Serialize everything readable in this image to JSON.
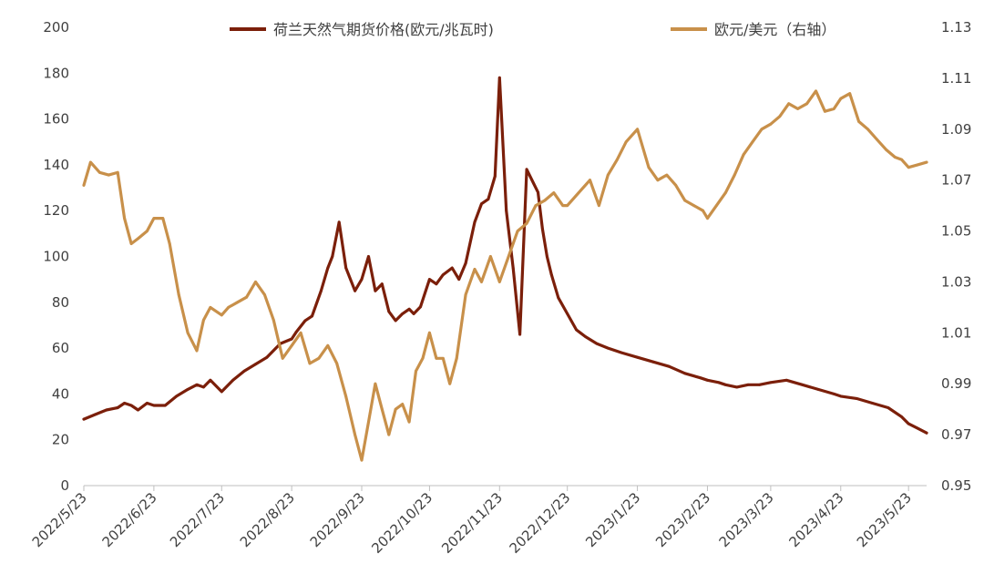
{
  "chart_data": {
    "type": "line",
    "legend_position": "top",
    "grid": false,
    "x_ticks": [
      "2022/5/23",
      "2022/6/23",
      "2022/7/23",
      "2022/8/23",
      "2022/9/23",
      "2022/10/23",
      "2022/11/23",
      "2022/12/23",
      "2023/1/23",
      "2023/2/23",
      "2023/3/23",
      "2023/4/23",
      "2023/5/23"
    ],
    "left_axis": {
      "min": 0,
      "max": 200,
      "ticks": [
        "0",
        "20",
        "40",
        "60",
        "80",
        "100",
        "120",
        "140",
        "160",
        "180",
        "200"
      ]
    },
    "right_axis": {
      "min": 0.95,
      "max": 1.13,
      "ticks": [
        "0.95",
        "0.97",
        "0.99",
        "1.01",
        "1.03",
        "1.05",
        "1.07",
        "1.09",
        "1.11",
        "1.13"
      ]
    },
    "series": [
      {
        "name": "荷兰天然气期货价格(欧元/兆瓦时)",
        "axis": "left",
        "color": "#7B1F0A",
        "x": [
          "2022-05-23",
          "2022-05-28",
          "2022-06-02",
          "2022-06-07",
          "2022-06-10",
          "2022-06-13",
          "2022-06-16",
          "2022-06-20",
          "2022-06-23",
          "2022-06-28",
          "2022-07-03",
          "2022-07-08",
          "2022-07-12",
          "2022-07-15",
          "2022-07-18",
          "2022-07-23",
          "2022-07-28",
          "2022-08-02",
          "2022-08-07",
          "2022-08-12",
          "2022-08-16",
          "2022-08-18",
          "2022-08-23",
          "2022-08-25",
          "2022-08-29",
          "2022-09-01",
          "2022-09-05",
          "2022-09-08",
          "2022-09-10",
          "2022-09-13",
          "2022-09-16",
          "2022-09-20",
          "2022-09-23",
          "2022-09-26",
          "2022-09-29",
          "2022-10-02",
          "2022-10-05",
          "2022-10-08",
          "2022-10-11",
          "2022-10-14",
          "2022-10-16",
          "2022-10-19",
          "2022-10-23",
          "2022-10-26",
          "2022-10-29",
          "2022-11-02",
          "2022-11-05",
          "2022-11-08",
          "2022-11-12",
          "2022-11-15",
          "2022-11-18",
          "2022-11-21",
          "2022-11-23",
          "2022-11-26",
          "2022-11-29",
          "2022-12-02",
          "2022-12-05",
          "2022-12-08",
          "2022-12-10",
          "2022-12-12",
          "2022-12-14",
          "2022-12-16",
          "2022-12-19",
          "2022-12-23",
          "2022-12-27",
          "2022-12-31",
          "2023-01-05",
          "2023-01-10",
          "2023-01-16",
          "2023-01-23",
          "2023-01-30",
          "2023-02-06",
          "2023-02-13",
          "2023-02-20",
          "2023-02-23",
          "2023-02-28",
          "2023-03-03",
          "2023-03-08",
          "2023-03-13",
          "2023-03-18",
          "2023-03-23",
          "2023-03-30",
          "2023-04-06",
          "2023-04-13",
          "2023-04-20",
          "2023-04-23",
          "2023-04-30",
          "2023-05-07",
          "2023-05-14",
          "2023-05-20",
          "2023-05-23",
          "2023-05-27",
          "2023-05-31"
        ],
        "values": [
          29,
          31,
          33,
          34,
          36,
          35,
          33,
          36,
          35,
          35,
          39,
          42,
          44,
          43,
          46,
          41,
          46,
          50,
          53,
          56,
          60,
          62,
          64,
          67,
          72,
          74,
          85,
          95,
          100,
          115,
          95,
          85,
          90,
          100,
          85,
          88,
          76,
          72,
          75,
          77,
          75,
          78,
          90,
          88,
          92,
          95,
          90,
          97,
          115,
          123,
          125,
          135,
          178,
          120,
          95,
          66,
          138,
          132,
          128,
          112,
          100,
          92,
          82,
          75,
          68,
          65,
          62,
          60,
          58,
          56,
          54,
          52,
          49,
          47,
          46,
          45,
          44,
          43,
          44,
          44,
          45,
          46,
          44,
          42,
          40,
          39,
          38,
          36,
          34,
          30,
          27,
          25,
          23
        ]
      },
      {
        "name": "欧元/美元（右轴）",
        "axis": "right",
        "color": "#C8904A",
        "x": [
          "2022-05-23",
          "2022-05-26",
          "2022-05-30",
          "2022-06-03",
          "2022-06-07",
          "2022-06-10",
          "2022-06-13",
          "2022-06-16",
          "2022-06-20",
          "2022-06-23",
          "2022-06-27",
          "2022-06-30",
          "2022-07-04",
          "2022-07-08",
          "2022-07-12",
          "2022-07-15",
          "2022-07-18",
          "2022-07-23",
          "2022-07-26",
          "2022-07-30",
          "2022-08-03",
          "2022-08-07",
          "2022-08-11",
          "2022-08-15",
          "2022-08-19",
          "2022-08-23",
          "2022-08-27",
          "2022-08-31",
          "2022-09-04",
          "2022-09-08",
          "2022-09-12",
          "2022-09-16",
          "2022-09-20",
          "2022-09-23",
          "2022-09-26",
          "2022-09-29",
          "2022-10-02",
          "2022-10-05",
          "2022-10-08",
          "2022-10-11",
          "2022-10-14",
          "2022-10-17",
          "2022-10-20",
          "2022-10-23",
          "2022-10-26",
          "2022-10-29",
          "2022-11-01",
          "2022-11-04",
          "2022-11-08",
          "2022-11-12",
          "2022-11-15",
          "2022-11-19",
          "2022-11-23",
          "2022-11-27",
          "2022-12-01",
          "2022-12-05",
          "2022-12-09",
          "2022-12-13",
          "2022-12-17",
          "2022-12-21",
          "2022-12-23",
          "2022-12-28",
          "2023-01-02",
          "2023-01-06",
          "2023-01-10",
          "2023-01-14",
          "2023-01-18",
          "2023-01-23",
          "2023-01-28",
          "2023-02-01",
          "2023-02-05",
          "2023-02-09",
          "2023-02-13",
          "2023-02-17",
          "2023-02-21",
          "2023-02-23",
          "2023-02-27",
          "2023-03-03",
          "2023-03-07",
          "2023-03-11",
          "2023-03-15",
          "2023-03-19",
          "2023-03-23",
          "2023-03-27",
          "2023-03-31",
          "2023-04-04",
          "2023-04-08",
          "2023-04-12",
          "2023-04-16",
          "2023-04-20",
          "2023-04-23",
          "2023-04-27",
          "2023-05-01",
          "2023-05-05",
          "2023-05-09",
          "2023-05-13",
          "2023-05-17",
          "2023-05-20",
          "2023-05-23",
          "2023-05-27",
          "2023-05-31"
        ],
        "values": [
          1.068,
          1.077,
          1.073,
          1.072,
          1.073,
          1.055,
          1.045,
          1.047,
          1.05,
          1.055,
          1.055,
          1.045,
          1.025,
          1.01,
          1.003,
          1.015,
          1.02,
          1.017,
          1.02,
          1.022,
          1.024,
          1.03,
          1.025,
          1.015,
          1.0,
          1.005,
          1.01,
          0.998,
          1.0,
          1.005,
          0.998,
          0.985,
          0.97,
          0.96,
          0.975,
          0.99,
          0.98,
          0.97,
          0.98,
          0.982,
          0.975,
          0.995,
          1.0,
          1.01,
          1.0,
          1.0,
          0.99,
          1.0,
          1.025,
          1.035,
          1.03,
          1.04,
          1.03,
          1.04,
          1.05,
          1.053,
          1.06,
          1.062,
          1.065,
          1.06,
          1.06,
          1.065,
          1.07,
          1.06,
          1.072,
          1.078,
          1.085,
          1.09,
          1.075,
          1.07,
          1.072,
          1.068,
          1.062,
          1.06,
          1.058,
          1.055,
          1.06,
          1.065,
          1.072,
          1.08,
          1.085,
          1.09,
          1.092,
          1.095,
          1.1,
          1.098,
          1.1,
          1.105,
          1.097,
          1.098,
          1.102,
          1.104,
          1.093,
          1.09,
          1.086,
          1.082,
          1.079,
          1.078,
          1.075,
          1.076,
          1.077
        ]
      }
    ]
  }
}
